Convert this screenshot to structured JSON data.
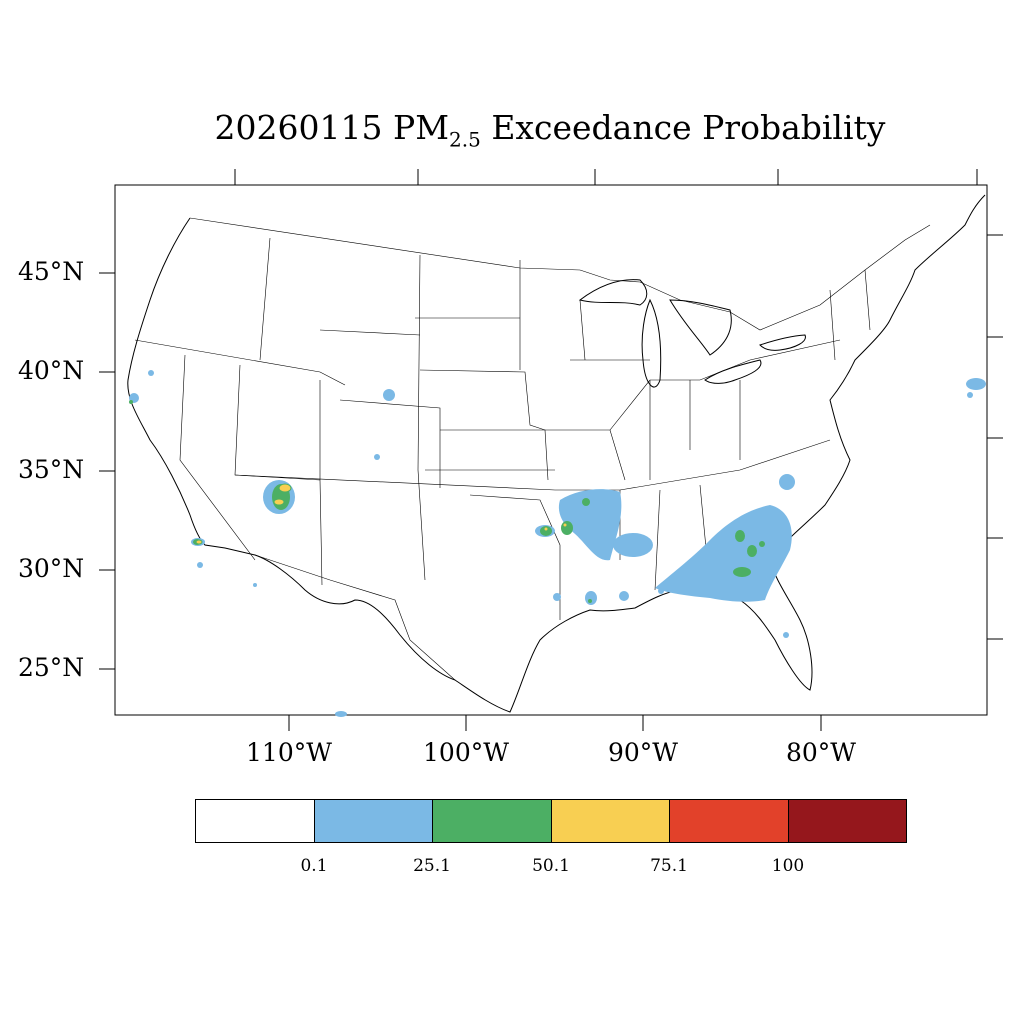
{
  "title": {
    "date": "20260115",
    "pollutant": "PM",
    "pollutant_sub": "2.5",
    "suffix": "Exceedance Probability"
  },
  "lat_labels": [
    "45°N",
    "40°N",
    "35°N",
    "30°N",
    "25°N"
  ],
  "lon_labels": [
    "110°W",
    "100°W",
    "90°W",
    "80°W"
  ],
  "colorbar": {
    "colors": [
      "#ffffff",
      "#7bb9e5",
      "#4caf64",
      "#f8cf52",
      "#e2412a",
      "#95171c"
    ],
    "labels": [
      "0.1",
      "25.1",
      "50.1",
      "75.1",
      "100"
    ]
  },
  "map": {
    "lat_range": [
      22.5,
      49.5
    ],
    "lon_range": [
      -119.5,
      -70.5
    ]
  }
}
